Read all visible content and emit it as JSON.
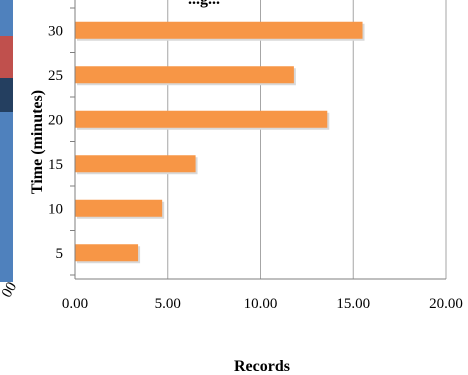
{
  "chart_data": {
    "type": "bar",
    "orientation": "horizontal",
    "title": "...g...",
    "xlabel": "Records",
    "ylabel": "Time (minutes)",
    "categories": [
      "5",
      "10",
      "15",
      "20",
      "25",
      "30"
    ],
    "series": [
      {
        "values": [
          3.4,
          4.7,
          6.5,
          13.6,
          11.8,
          15.5
        ]
      }
    ],
    "xlim": [
      0,
      20
    ],
    "xticks": [
      "0.00",
      "5.00",
      "10.00",
      "15.00",
      "20.00"
    ],
    "grid": true,
    "colors": {
      "bar": "#F79646",
      "grid": "#A6A6A6",
      "axis": "#7F7F7F"
    },
    "left_partial_element": {
      "tick_fragment": "00",
      "colors": [
        "#4F81BD",
        "#C0504D",
        "#243F60"
      ]
    }
  }
}
